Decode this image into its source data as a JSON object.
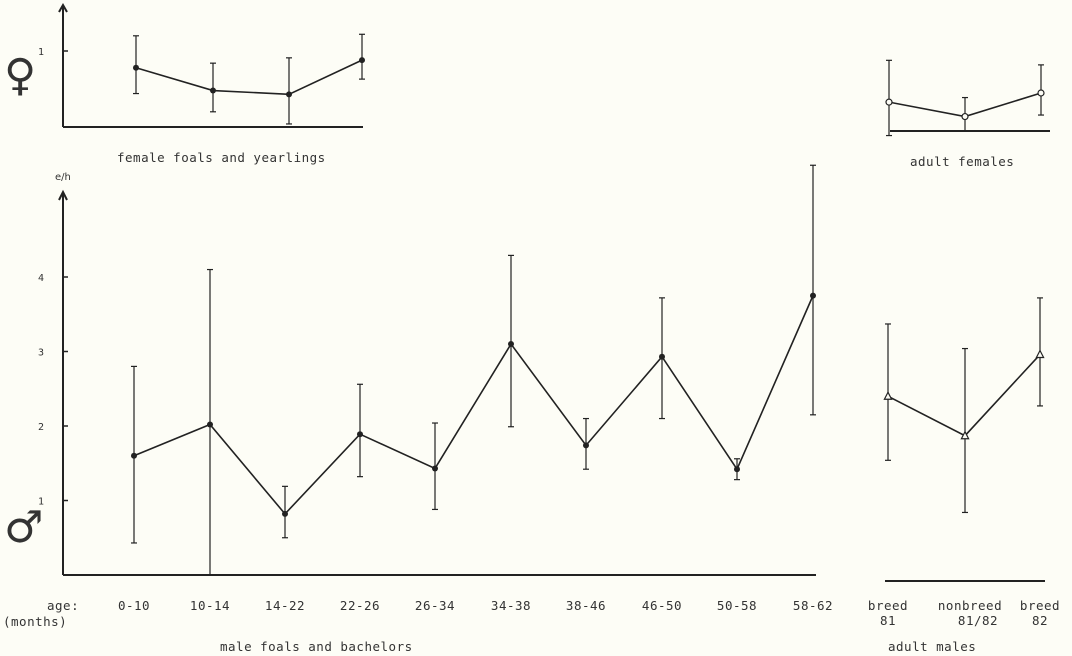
{
  "chart_data": [
    {
      "id": "female-young",
      "type": "line",
      "title": "female foals and yearlings",
      "sex_symbol": "♀",
      "ytick_labels": [
        "1"
      ],
      "marker": "filled-circle",
      "points": [
        {
          "y": 0.78,
          "low": 0.44,
          "high": 1.2
        },
        {
          "y": 0.48,
          "low": 0.2,
          "high": 0.84
        },
        {
          "y": 0.43,
          "low": 0.04,
          "high": 0.91
        },
        {
          "y": 0.88,
          "low": 0.63,
          "high": 1.22
        }
      ],
      "ylim": [
        0,
        1.55
      ]
    },
    {
      "id": "female-adult",
      "type": "line",
      "title": "adult females",
      "marker": "open-circle",
      "points": [
        {
          "y": 0.38,
          "low": -0.06,
          "high": 0.93
        },
        {
          "y": 0.19,
          "low": 0.0,
          "high": 0.44
        },
        {
          "y": 0.5,
          "low": 0.21,
          "high": 0.87
        }
      ],
      "ylim": [
        0,
        1.55
      ]
    },
    {
      "id": "male-young",
      "type": "line",
      "title": "male foals and bachelors",
      "sex_symbol": "♂",
      "ylabel": "e/h",
      "xlabel_prefix": [
        "age:",
        "(months)"
      ],
      "categories": [
        "0-10",
        "10-14",
        "14-22",
        "22-26",
        "26-34",
        "34-38",
        "38-46",
        "46-50",
        "50-58",
        "58-62"
      ],
      "ytick_labels": [
        "1",
        "2",
        "3",
        "4"
      ],
      "marker": "filled-circle",
      "points": [
        {
          "y": 1.6,
          "low": 0.43,
          "high": 2.8
        },
        {
          "y": 2.02,
          "low": 0.0,
          "high": 4.1
        },
        {
          "y": 0.82,
          "low": 0.5,
          "high": 1.19
        },
        {
          "y": 1.89,
          "low": 1.32,
          "high": 2.56
        },
        {
          "y": 1.43,
          "low": 0.88,
          "high": 2.04
        },
        {
          "y": 3.1,
          "low": 1.99,
          "high": 4.29
        },
        {
          "y": 1.74,
          "low": 1.42,
          "high": 2.1
        },
        {
          "y": 2.93,
          "low": 2.1,
          "high": 3.72
        },
        {
          "y": 1.42,
          "low": 1.28,
          "high": 1.56
        },
        {
          "y": 3.75,
          "low": 2.15,
          "high": 5.5
        }
      ],
      "ylim": [
        0,
        5.5
      ]
    },
    {
      "id": "male-adult",
      "type": "line",
      "title": "adult males",
      "categories": [
        [
          "breed",
          "81"
        ],
        [
          "nonbreed",
          "81/82"
        ],
        [
          "breed",
          "82"
        ]
      ],
      "marker": "open-triangle",
      "points": [
        {
          "y": 2.48,
          "low": 1.62,
          "high": 3.45
        },
        {
          "y": 1.95,
          "low": 0.92,
          "high": 3.12
        },
        {
          "y": 3.04,
          "low": 2.35,
          "high": 3.8
        }
      ],
      "ylim": [
        0,
        5.5
      ]
    }
  ]
}
